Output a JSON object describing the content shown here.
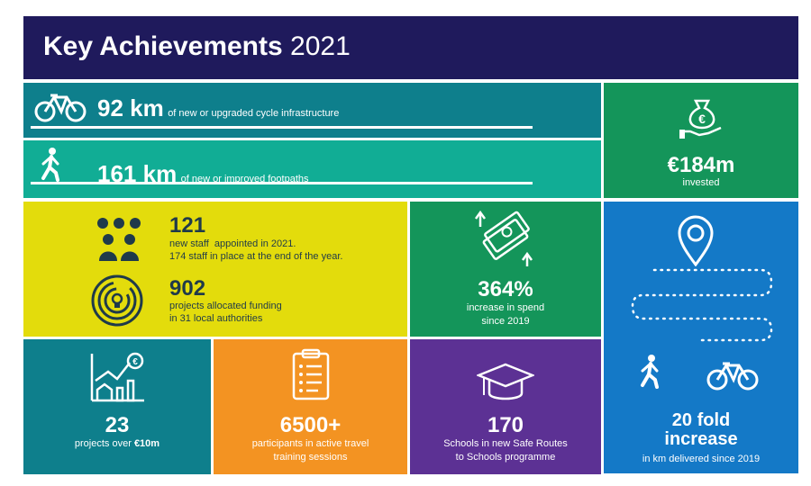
{
  "header": {
    "title_bold": "Key Achievements",
    "title_year": "2021"
  },
  "cycle": {
    "value": "92 km",
    "desc": "of new or upgraded cycle infrastructure"
  },
  "foot": {
    "value": "161 km",
    "desc": "of new or improved footpaths"
  },
  "invested": {
    "value": "€184m",
    "desc": "invested"
  },
  "staff": {
    "value": "121",
    "line1": "new staff  appointed in 2021.",
    "line2": "174 staff in place at the end of the year."
  },
  "projects": {
    "value": "902",
    "line1": "projects allocated funding",
    "line2": "in 31 local authorities"
  },
  "spend": {
    "value": "364%",
    "line1": "increase in spend",
    "line2": "since 2019"
  },
  "fold": {
    "line1": "20 fold",
    "line2": "increase",
    "desc": "in km delivered since 2019"
  },
  "big_projects": {
    "value": "23",
    "desc_prefix": "projects over ",
    "desc_bold": "€10m"
  },
  "participants": {
    "value": "6500+",
    "line1": "participants in active travel",
    "line2": "training sessions"
  },
  "schools": {
    "value": "170",
    "line1": "Schools in new Safe Routes",
    "line2": "to Schools programme"
  },
  "colors": {
    "navy": "#1f1a5c",
    "teal": "#0e7f8c",
    "aqua": "#11ad95",
    "green": "#14955a",
    "yellow": "#e3dc0c",
    "blue": "#1479c7",
    "orange": "#f39322",
    "purple": "#5c3194",
    "dark": "#1f3a4a"
  },
  "icons": [
    "bicycle-icon",
    "walking-person-icon",
    "money-bag-hand-icon",
    "people-group-icon",
    "maze-lightbulb-icon",
    "money-up-icon",
    "location-pin-icon",
    "chart-house-euro-icon",
    "clipboard-list-icon",
    "graduation-cap-icon"
  ]
}
